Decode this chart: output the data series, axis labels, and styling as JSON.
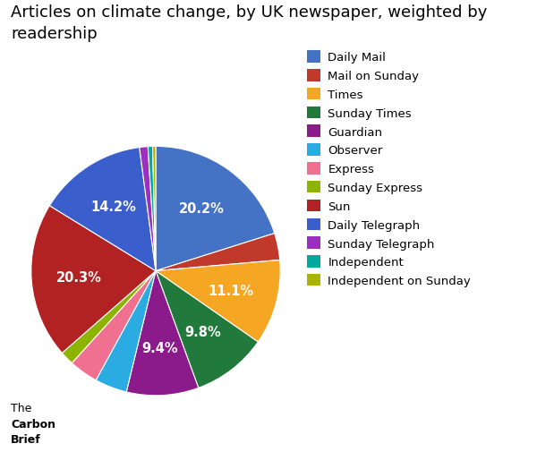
{
  "title": "Articles on climate change, by UK newspaper, weighted by\nreadership",
  "slices": [
    {
      "label": "Daily Mail",
      "value": 20.2,
      "color": "#4472C4"
    },
    {
      "label": "Mail on Sunday",
      "value": 3.5,
      "color": "#C0392B"
    },
    {
      "label": "Times",
      "value": 11.1,
      "color": "#F5A623"
    },
    {
      "label": "Sunday Times",
      "value": 9.8,
      "color": "#217A3C"
    },
    {
      "label": "Guardian",
      "value": 9.4,
      "color": "#8B1A8B"
    },
    {
      "label": "Observer",
      "value": 4.2,
      "color": "#2AABE2"
    },
    {
      "label": "Express",
      "value": 3.8,
      "color": "#F07090"
    },
    {
      "label": "Sunday Express",
      "value": 1.8,
      "color": "#8DB400"
    },
    {
      "label": "Sun",
      "value": 20.3,
      "color": "#B22222"
    },
    {
      "label": "Daily Telegraph",
      "value": 14.2,
      "color": "#3A5FCD"
    },
    {
      "label": "Sunday Telegraph",
      "value": 1.1,
      "color": "#9B30C0"
    },
    {
      "label": "Independent",
      "value": 0.6,
      "color": "#00A99D"
    },
    {
      "label": "Independent on Sunday",
      "value": 0.4,
      "color": "#A8B400"
    }
  ],
  "label_pcts": {
    "Daily Mail": "20.2%",
    "Times": "11.1%",
    "Sunday Times": "9.8%",
    "Guardian": "9.4%",
    "Sun": "20.3%",
    "Daily Telegraph": "14.2%"
  },
  "background_color": "#FFFFFF",
  "title_fontsize": 13,
  "label_fontsize": 10.5,
  "legend_fontsize": 9.5
}
